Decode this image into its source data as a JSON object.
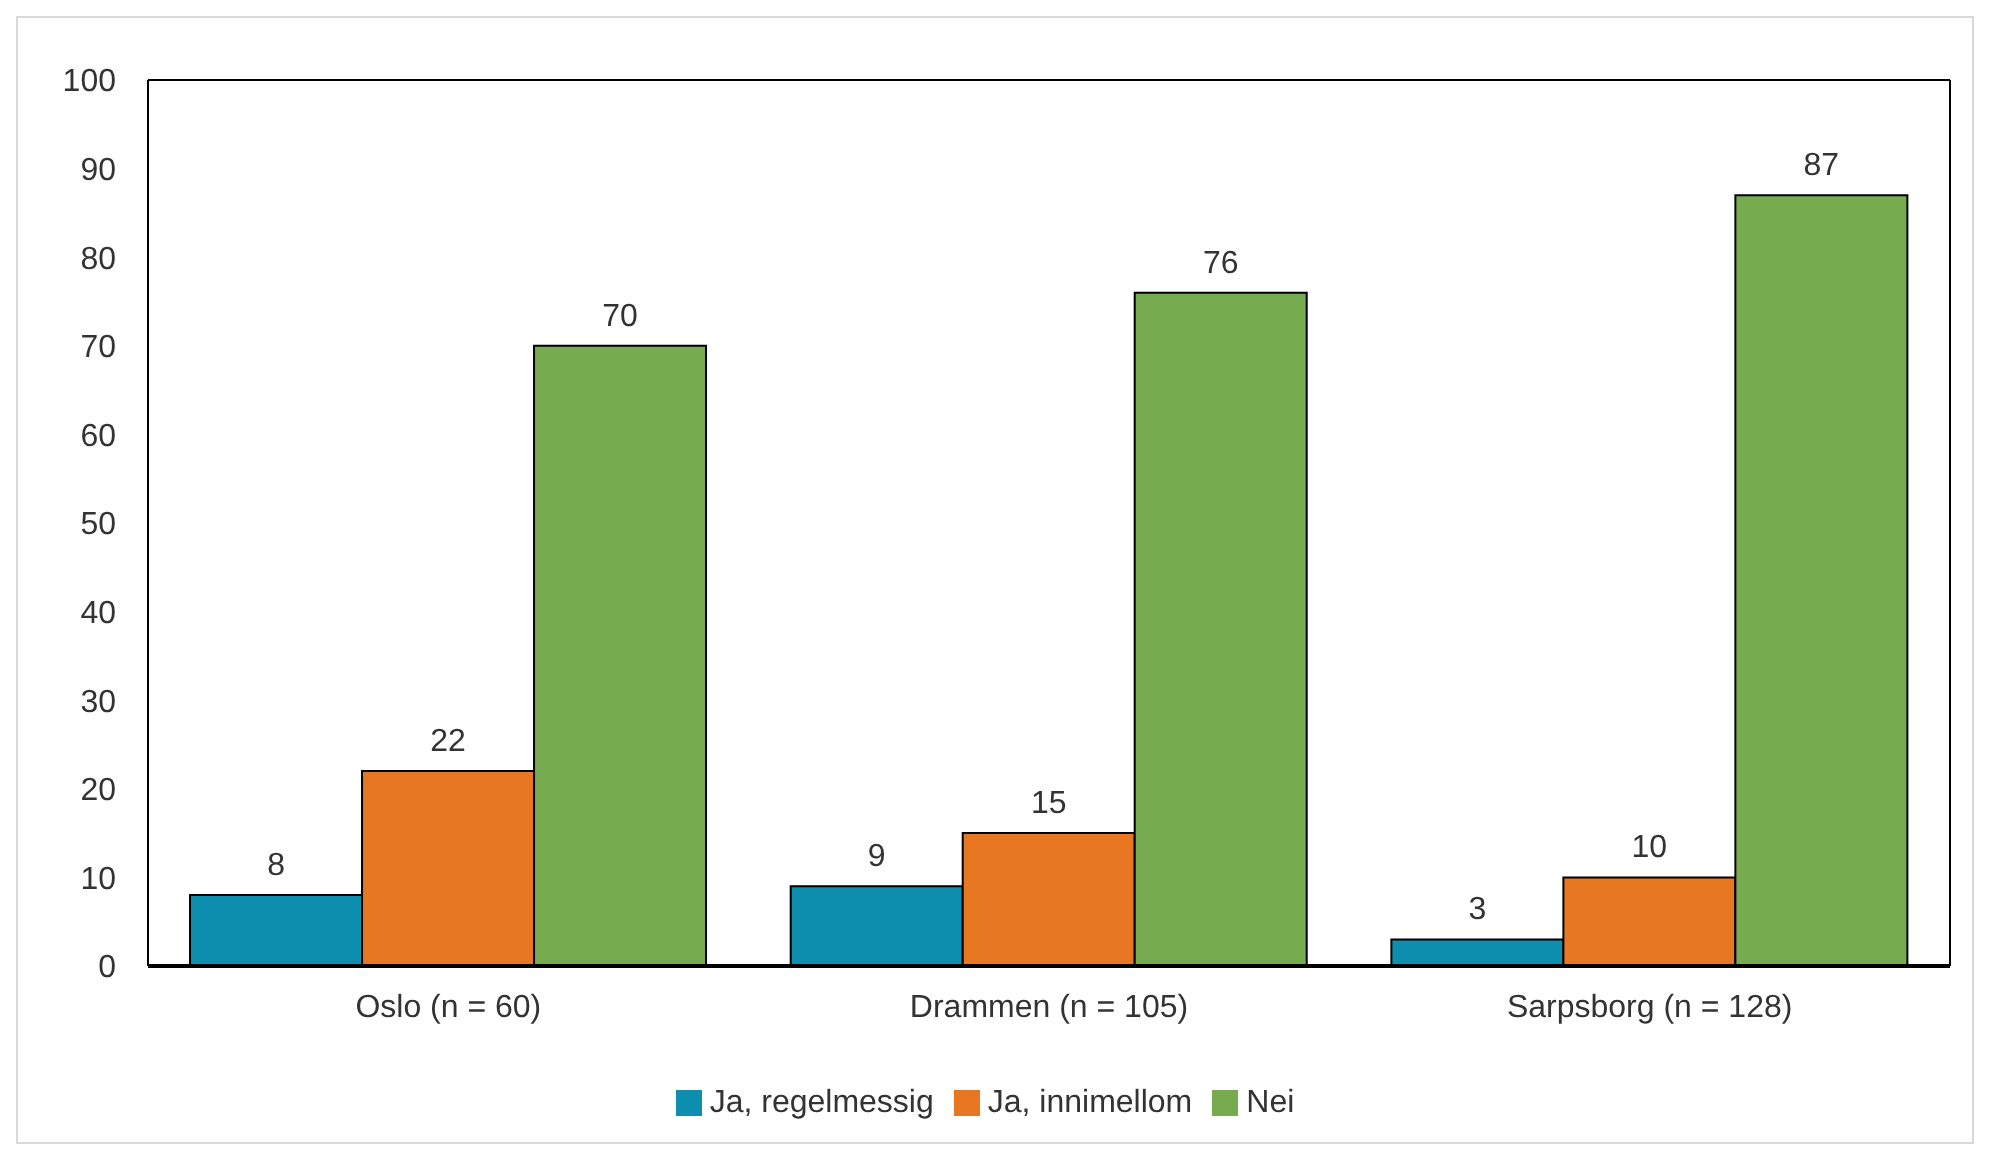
{
  "chart_data": {
    "type": "bar",
    "categories": [
      "Oslo (n = 60)",
      "Drammen (n = 105)",
      "Sarpsborg (n = 128)"
    ],
    "series": [
      {
        "name": "Ja, regelmessig",
        "color": "#0e8fb0",
        "values": [
          8,
          9,
          3
        ]
      },
      {
        "name": "Ja, innimellom",
        "color": "#e87722",
        "values": [
          22,
          15,
          10
        ]
      },
      {
        "name": "Nei",
        "color": "#77ab4f",
        "values": [
          70,
          76,
          87
        ]
      }
    ],
    "ylim": [
      0,
      100
    ],
    "yticks": [
      0,
      10,
      20,
      30,
      40,
      50,
      60,
      70,
      80,
      90,
      100
    ],
    "grid": false,
    "legend": "bottom",
    "data_labels": true
  }
}
